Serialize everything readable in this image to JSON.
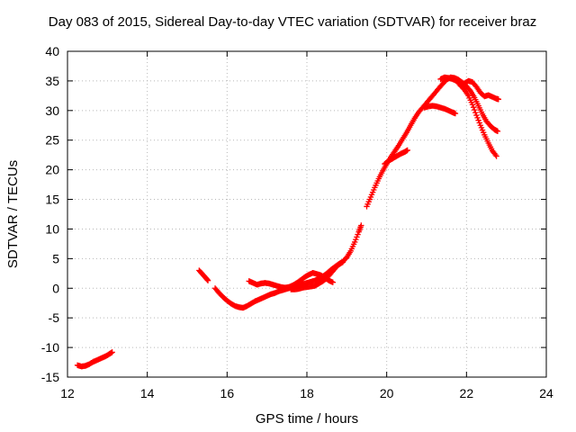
{
  "chart_data": {
    "type": "scatter",
    "title": "Day 083 of 2015, Sidereal Day-to-day VTEC variation (SDTVAR) for receiver braz",
    "xlabel": "GPS time / hours",
    "ylabel": "SDTVAR / TECUs",
    "xlim": [
      12,
      24
    ],
    "ylim": [
      -15,
      40
    ],
    "xticks": [
      12,
      14,
      16,
      18,
      20,
      22,
      24
    ],
    "yticks": [
      -15,
      -10,
      -5,
      0,
      5,
      10,
      15,
      20,
      25,
      30,
      35,
      40
    ],
    "grid": true,
    "marker": "+",
    "color": "#ff0000",
    "series": [
      {
        "name": "arc-1",
        "points": [
          [
            12.25,
            -13.0
          ],
          [
            12.35,
            -13.2
          ],
          [
            12.45,
            -13.1
          ],
          [
            12.55,
            -12.8
          ],
          [
            12.65,
            -12.4
          ],
          [
            12.75,
            -12.1
          ],
          [
            12.85,
            -11.8
          ],
          [
            12.95,
            -11.5
          ],
          [
            13.05,
            -11.1
          ],
          [
            13.12,
            -10.8
          ]
        ]
      },
      {
        "name": "arc-2",
        "points": [
          [
            15.3,
            3.0
          ],
          [
            15.38,
            2.4
          ],
          [
            15.46,
            1.8
          ],
          [
            15.52,
            1.3
          ]
        ]
      },
      {
        "name": "arc-3",
        "points": [
          [
            15.7,
            0.0
          ],
          [
            15.8,
            -0.8
          ],
          [
            15.9,
            -1.5
          ],
          [
            16.0,
            -2.1
          ],
          [
            16.1,
            -2.6
          ],
          [
            16.2,
            -3.0
          ],
          [
            16.3,
            -3.2
          ],
          [
            16.4,
            -3.3
          ],
          [
            16.5,
            -3.0
          ],
          [
            16.6,
            -2.6
          ],
          [
            16.7,
            -2.2
          ],
          [
            16.8,
            -1.9
          ],
          [
            16.9,
            -1.6
          ],
          [
            17.0,
            -1.3
          ],
          [
            17.1,
            -1.0
          ],
          [
            17.2,
            -0.8
          ],
          [
            17.3,
            -0.5
          ],
          [
            17.4,
            -0.3
          ],
          [
            17.5,
            -0.1
          ],
          [
            17.6,
            0.1
          ],
          [
            17.7,
            0.3
          ],
          [
            17.8,
            0.5
          ],
          [
            17.9,
            0.7
          ],
          [
            18.0,
            0.9
          ],
          [
            18.1,
            1.1
          ],
          [
            18.2,
            1.3
          ],
          [
            18.3,
            1.6
          ],
          [
            18.4,
            2.0
          ],
          [
            18.5,
            2.5
          ],
          [
            18.6,
            3.1
          ],
          [
            18.7,
            3.6
          ],
          [
            18.8,
            4.1
          ],
          [
            18.9,
            4.5
          ],
          [
            19.0,
            5.2
          ],
          [
            19.1,
            6.3
          ],
          [
            19.2,
            7.8
          ],
          [
            19.3,
            9.5
          ],
          [
            19.36,
            10.6
          ]
        ]
      },
      {
        "name": "arc-4",
        "points": [
          [
            16.55,
            1.2
          ],
          [
            16.65,
            0.9
          ],
          [
            16.75,
            0.6
          ],
          [
            16.85,
            0.8
          ],
          [
            16.95,
            0.9
          ],
          [
            17.05,
            0.8
          ],
          [
            17.15,
            0.6
          ],
          [
            17.25,
            0.4
          ],
          [
            17.35,
            0.2
          ],
          [
            17.45,
            0.1
          ],
          [
            17.55,
            0.2
          ],
          [
            17.65,
            0.5
          ],
          [
            17.75,
            0.9
          ],
          [
            17.85,
            1.4
          ],
          [
            17.95,
            1.9
          ],
          [
            18.05,
            2.3
          ],
          [
            18.15,
            2.6
          ],
          [
            18.25,
            2.4
          ],
          [
            18.35,
            2.2
          ],
          [
            18.45,
            1.8
          ],
          [
            18.55,
            1.3
          ],
          [
            18.65,
            1.0
          ]
        ]
      },
      {
        "name": "arc-5",
        "points": [
          [
            17.6,
            -0.2
          ],
          [
            17.7,
            -0.2
          ],
          [
            17.8,
            -0.1
          ],
          [
            17.9,
            0.1
          ],
          [
            18.0,
            0.2
          ],
          [
            18.1,
            0.3
          ],
          [
            18.2,
            0.4
          ],
          [
            18.3,
            0.8
          ],
          [
            18.4,
            1.2
          ],
          [
            18.5,
            1.7
          ],
          [
            18.6,
            2.5
          ],
          [
            18.7,
            3.3
          ],
          [
            18.8,
            4.0
          ],
          [
            18.9,
            4.4
          ]
        ]
      },
      {
        "name": "arc-6",
        "points": [
          [
            19.5,
            13.8
          ],
          [
            19.6,
            15.4
          ],
          [
            19.7,
            17.0
          ],
          [
            19.8,
            18.5
          ],
          [
            19.9,
            19.8
          ],
          [
            20.0,
            21.0
          ],
          [
            20.1,
            22.1
          ],
          [
            20.2,
            23.1
          ],
          [
            20.3,
            24.1
          ],
          [
            20.4,
            25.2
          ],
          [
            20.5,
            26.3
          ],
          [
            20.6,
            27.5
          ],
          [
            20.7,
            28.7
          ],
          [
            20.8,
            29.7
          ],
          [
            20.9,
            30.5
          ],
          [
            21.0,
            31.3
          ],
          [
            21.1,
            32.1
          ],
          [
            21.2,
            32.9
          ],
          [
            21.3,
            33.7
          ],
          [
            21.4,
            34.5
          ],
          [
            21.5,
            35.2
          ],
          [
            21.6,
            35.6
          ],
          [
            21.7,
            35.5
          ],
          [
            21.8,
            35.2
          ],
          [
            21.9,
            34.7
          ],
          [
            22.0,
            34.1
          ],
          [
            22.1,
            33.3
          ],
          [
            22.2,
            32.2
          ],
          [
            22.3,
            30.8
          ],
          [
            22.4,
            29.4
          ],
          [
            22.5,
            28.2
          ],
          [
            22.6,
            27.4
          ],
          [
            22.7,
            26.8
          ],
          [
            22.78,
            26.5
          ]
        ]
      },
      {
        "name": "arc-7",
        "points": [
          [
            19.95,
            21.0
          ],
          [
            20.05,
            21.5
          ],
          [
            20.15,
            21.9
          ],
          [
            20.25,
            22.3
          ],
          [
            20.35,
            22.7
          ],
          [
            20.45,
            23.0
          ],
          [
            20.52,
            23.3
          ]
        ]
      },
      {
        "name": "arc-8",
        "points": [
          [
            20.95,
            30.5
          ],
          [
            21.05,
            30.7
          ],
          [
            21.15,
            30.8
          ],
          [
            21.25,
            30.7
          ],
          [
            21.35,
            30.5
          ],
          [
            21.45,
            30.3
          ],
          [
            21.55,
            30.0
          ],
          [
            21.65,
            29.7
          ],
          [
            21.72,
            29.5
          ]
        ]
      },
      {
        "name": "arc-9",
        "points": [
          [
            21.35,
            35.3
          ],
          [
            21.45,
            35.6
          ],
          [
            21.55,
            35.5
          ],
          [
            21.65,
            35.3
          ],
          [
            21.75,
            35.0
          ],
          [
            21.85,
            34.2
          ],
          [
            21.95,
            33.5
          ],
          [
            22.05,
            32.5
          ],
          [
            22.15,
            31.0
          ],
          [
            22.25,
            29.2
          ],
          [
            22.35,
            27.5
          ],
          [
            22.45,
            25.9
          ],
          [
            22.55,
            24.5
          ],
          [
            22.65,
            23.2
          ],
          [
            22.75,
            22.3
          ]
        ]
      },
      {
        "name": "arc-10",
        "points": [
          [
            21.95,
            34.6
          ],
          [
            22.05,
            35.0
          ],
          [
            22.15,
            34.8
          ],
          [
            22.25,
            34.0
          ],
          [
            22.35,
            33.0
          ],
          [
            22.45,
            32.4
          ],
          [
            22.55,
            32.6
          ],
          [
            22.65,
            32.3
          ],
          [
            22.75,
            32.0
          ],
          [
            22.8,
            31.9
          ]
        ]
      }
    ]
  }
}
